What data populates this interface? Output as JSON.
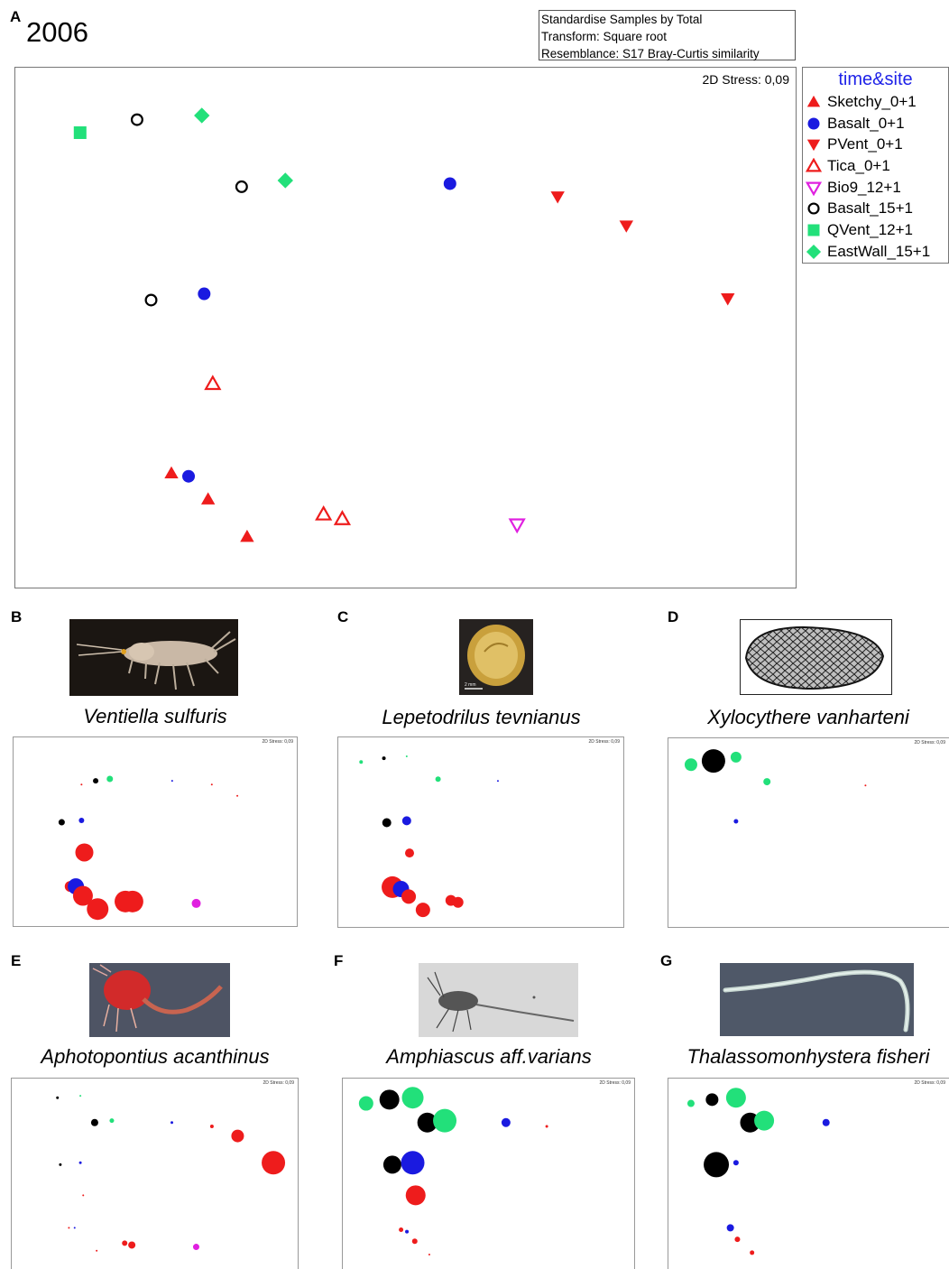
{
  "panel_labels": {
    "A": "A",
    "B": "B",
    "C": "C",
    "D": "D",
    "E": "E",
    "F": "F",
    "G": "G"
  },
  "main": {
    "year": "2006",
    "info_lines": [
      "Standardise Samples by Total",
      "Transform: Square root",
      "Resemblance: S17 Bray-Curtis similarity"
    ],
    "stress": "2D Stress: 0,09"
  },
  "legend": {
    "title": "time&site",
    "items": [
      {
        "label": "Sketchy_0+1",
        "symbol": "triangle-up",
        "color": "#ee1c1c",
        "filled": true
      },
      {
        "label": "Basalt_0+1",
        "symbol": "circle",
        "color": "#1a1ae0",
        "filled": true
      },
      {
        "label": "PVent_0+1",
        "symbol": "triangle-down",
        "color": "#ee1c1c",
        "filled": true
      },
      {
        "label": "Tica_0+1",
        "symbol": "triangle-up",
        "color": "#ee1c1c",
        "filled": false
      },
      {
        "label": "Bio9_12+1",
        "symbol": "triangle-down",
        "color": "#e020e0",
        "filled": false
      },
      {
        "label": "Basalt_15+1",
        "symbol": "circle",
        "color": "#000000",
        "filled": false
      },
      {
        "label": "QVent_12+1",
        "symbol": "square",
        "color": "#22e07a",
        "filled": true
      },
      {
        "label": "EastWall_15+1",
        "symbol": "diamond",
        "color": "#22e07a",
        "filled": true
      }
    ]
  },
  "species_panels": [
    {
      "name": "Ventiella sulfuris",
      "stress": "2D Stress: 0,09",
      "icon": "amphipod-photo"
    },
    {
      "name": "Lepetodrilus tevnianus",
      "stress": "2D Stress: 0,09",
      "icon": "limpet-photo"
    },
    {
      "name": "Xylocythere vanharteni",
      "stress": "2D Stress: 0,09",
      "icon": "ostracod-photo"
    },
    {
      "name": "Aphotopontius acanthinus",
      "stress": "2D Stress: 0,09",
      "icon": "copepod-red-photo"
    },
    {
      "name": "Amphiascus aff.varians",
      "stress": "2D Stress: 0,09",
      "icon": "copepod-photo"
    },
    {
      "name": "Thalassomonhystera fisheri",
      "stress": "2D Stress: 0,09",
      "icon": "nematode-photo"
    }
  ],
  "chart_data": [
    {
      "type": "scatter",
      "title": "2006",
      "subtitle": "2D Stress: 0,09",
      "xlim": [
        0,
        1
      ],
      "ylim": [
        0,
        1
      ],
      "series": [
        {
          "name": "Sketchy_0+1",
          "points": [
            [
              0.2,
              0.22
            ],
            [
              0.247,
              0.17
            ],
            [
              0.297,
              0.098
            ]
          ]
        },
        {
          "name": "Basalt_0+1",
          "points": [
            [
              0.557,
              0.777
            ],
            [
              0.242,
              0.565
            ],
            [
              0.222,
              0.214
            ]
          ]
        },
        {
          "name": "PVent_0+1",
          "points": [
            [
              0.695,
              0.752
            ],
            [
              0.783,
              0.696
            ],
            [
              0.913,
              0.556
            ]
          ]
        },
        {
          "name": "Tica_0+1",
          "points": [
            [
              0.253,
              0.392
            ],
            [
              0.395,
              0.141
            ],
            [
              0.419,
              0.132
            ]
          ]
        },
        {
          "name": "Bio9_12+1",
          "points": [
            [
              0.643,
              0.121
            ]
          ]
        },
        {
          "name": "Basalt_15+1",
          "points": [
            [
              0.156,
              0.9
            ],
            [
              0.29,
              0.771
            ],
            [
              0.174,
              0.553
            ]
          ]
        },
        {
          "name": "QVent_12+1",
          "points": [
            [
              0.083,
              0.875
            ]
          ]
        },
        {
          "name": "EastWall_15+1",
          "points": [
            [
              0.239,
              0.908
            ],
            [
              0.346,
              0.783
            ]
          ]
        }
      ]
    },
    {
      "type": "bubble",
      "title": "Ventiella sulfuris",
      "points": [
        {
          "x": 0.24,
          "y": 0.75,
          "size": 1,
          "color": "#ee1c1c"
        },
        {
          "x": 0.56,
          "y": 0.77,
          "size": 1,
          "color": "#1a1ae0"
        },
        {
          "x": 0.7,
          "y": 0.75,
          "size": 1,
          "color": "#ee1c1c"
        },
        {
          "x": 0.79,
          "y": 0.69,
          "size": 1,
          "color": "#ee1c1c"
        },
        {
          "x": 0.29,
          "y": 0.77,
          "size": 3,
          "color": "#000000"
        },
        {
          "x": 0.34,
          "y": 0.78,
          "size": 3.5,
          "color": "#22e07a"
        },
        {
          "x": 0.17,
          "y": 0.55,
          "size": 3.5,
          "color": "#000000"
        },
        {
          "x": 0.24,
          "y": 0.56,
          "size": 3,
          "color": "#1a1ae0"
        },
        {
          "x": 0.25,
          "y": 0.39,
          "size": 10,
          "color": "#ee1c1c"
        },
        {
          "x": 0.2,
          "y": 0.21,
          "size": 6,
          "color": "#ee1c1c"
        },
        {
          "x": 0.22,
          "y": 0.21,
          "size": 9,
          "color": "#1a1ae0"
        },
        {
          "x": 0.245,
          "y": 0.16,
          "size": 11,
          "color": "#ee1c1c"
        },
        {
          "x": 0.297,
          "y": 0.09,
          "size": 12,
          "color": "#ee1c1c"
        },
        {
          "x": 0.395,
          "y": 0.13,
          "size": 12,
          "color": "#ee1c1c"
        },
        {
          "x": 0.42,
          "y": 0.13,
          "size": 12,
          "color": "#ee1c1c"
        },
        {
          "x": 0.645,
          "y": 0.12,
          "size": 5,
          "color": "#e020e0"
        }
      ]
    },
    {
      "type": "bubble",
      "title": "Lepetodrilus tevnianus",
      "points": [
        {
          "x": 0.08,
          "y": 0.87,
          "size": 2,
          "color": "#22e07a"
        },
        {
          "x": 0.16,
          "y": 0.89,
          "size": 2,
          "color": "#000000"
        },
        {
          "x": 0.24,
          "y": 0.9,
          "size": 1,
          "color": "#22e07a"
        },
        {
          "x": 0.35,
          "y": 0.78,
          "size": 3,
          "color": "#22e07a"
        },
        {
          "x": 0.56,
          "y": 0.77,
          "size": 1,
          "color": "#1a1ae0"
        },
        {
          "x": 0.17,
          "y": 0.55,
          "size": 5,
          "color": "#000000"
        },
        {
          "x": 0.24,
          "y": 0.56,
          "size": 5,
          "color": "#1a1ae0"
        },
        {
          "x": 0.25,
          "y": 0.39,
          "size": 5,
          "color": "#ee1c1c"
        },
        {
          "x": 0.19,
          "y": 0.21,
          "size": 12,
          "color": "#ee1c1c"
        },
        {
          "x": 0.22,
          "y": 0.2,
          "size": 9,
          "color": "#1a1ae0"
        },
        {
          "x": 0.247,
          "y": 0.16,
          "size": 8,
          "color": "#ee1c1c"
        },
        {
          "x": 0.297,
          "y": 0.09,
          "size": 8,
          "color": "#ee1c1c"
        },
        {
          "x": 0.395,
          "y": 0.14,
          "size": 6,
          "color": "#ee1c1c"
        },
        {
          "x": 0.42,
          "y": 0.13,
          "size": 6,
          "color": "#ee1c1c"
        }
      ]
    },
    {
      "type": "bubble",
      "title": "Xylocythere vanharteni",
      "points": [
        {
          "x": 0.08,
          "y": 0.86,
          "size": 7,
          "color": "#22e07a"
        },
        {
          "x": 0.16,
          "y": 0.88,
          "size": 13,
          "color": "#000000"
        },
        {
          "x": 0.24,
          "y": 0.9,
          "size": 6,
          "color": "#22e07a"
        },
        {
          "x": 0.35,
          "y": 0.77,
          "size": 4,
          "color": "#22e07a"
        },
        {
          "x": 0.7,
          "y": 0.75,
          "size": 1,
          "color": "#ee1c1c"
        },
        {
          "x": 0.24,
          "y": 0.56,
          "size": 2.5,
          "color": "#1a1ae0"
        }
      ]
    },
    {
      "type": "bubble",
      "title": "Aphotopontius acanthinus",
      "points": [
        {
          "x": 0.16,
          "y": 0.9,
          "size": 1.5,
          "color": "#000000"
        },
        {
          "x": 0.24,
          "y": 0.91,
          "size": 1,
          "color": "#22e07a"
        },
        {
          "x": 0.29,
          "y": 0.77,
          "size": 4,
          "color": "#000000"
        },
        {
          "x": 0.35,
          "y": 0.78,
          "size": 2.5,
          "color": "#22e07a"
        },
        {
          "x": 0.56,
          "y": 0.77,
          "size": 1.5,
          "color": "#1a1ae0"
        },
        {
          "x": 0.7,
          "y": 0.75,
          "size": 2,
          "color": "#ee1c1c"
        },
        {
          "x": 0.79,
          "y": 0.7,
          "size": 7,
          "color": "#ee1c1c"
        },
        {
          "x": 0.915,
          "y": 0.56,
          "size": 13,
          "color": "#ee1c1c"
        },
        {
          "x": 0.17,
          "y": 0.55,
          "size": 1.5,
          "color": "#000000"
        },
        {
          "x": 0.24,
          "y": 0.56,
          "size": 1.5,
          "color": "#1a1ae0"
        },
        {
          "x": 0.25,
          "y": 0.39,
          "size": 1,
          "color": "#ee1c1c"
        },
        {
          "x": 0.2,
          "y": 0.22,
          "size": 1,
          "color": "#ee1c1c"
        },
        {
          "x": 0.22,
          "y": 0.22,
          "size": 1,
          "color": "#1a1ae0"
        },
        {
          "x": 0.297,
          "y": 0.1,
          "size": 1,
          "color": "#ee1c1c"
        },
        {
          "x": 0.395,
          "y": 0.14,
          "size": 3,
          "color": "#ee1c1c"
        },
        {
          "x": 0.42,
          "y": 0.13,
          "size": 4,
          "color": "#ee1c1c"
        },
        {
          "x": 0.645,
          "y": 0.12,
          "size": 3.5,
          "color": "#e020e0"
        }
      ]
    },
    {
      "type": "bubble",
      "title": "Amphiascus aff.varians",
      "points": [
        {
          "x": 0.08,
          "y": 0.87,
          "size": 8,
          "color": "#22e07a"
        },
        {
          "x": 0.16,
          "y": 0.89,
          "size": 11,
          "color": "#000000"
        },
        {
          "x": 0.24,
          "y": 0.9,
          "size": 12,
          "color": "#22e07a"
        },
        {
          "x": 0.29,
          "y": 0.77,
          "size": 11,
          "color": "#000000"
        },
        {
          "x": 0.35,
          "y": 0.78,
          "size": 13,
          "color": "#22e07a"
        },
        {
          "x": 0.56,
          "y": 0.77,
          "size": 5,
          "color": "#1a1ae0"
        },
        {
          "x": 0.7,
          "y": 0.75,
          "size": 1.5,
          "color": "#ee1c1c"
        },
        {
          "x": 0.17,
          "y": 0.55,
          "size": 10,
          "color": "#000000"
        },
        {
          "x": 0.24,
          "y": 0.56,
          "size": 13,
          "color": "#1a1ae0"
        },
        {
          "x": 0.25,
          "y": 0.39,
          "size": 11,
          "color": "#ee1c1c"
        },
        {
          "x": 0.2,
          "y": 0.21,
          "size": 2.5,
          "color": "#ee1c1c"
        },
        {
          "x": 0.22,
          "y": 0.2,
          "size": 2,
          "color": "#1a1ae0"
        },
        {
          "x": 0.247,
          "y": 0.15,
          "size": 3,
          "color": "#ee1c1c"
        },
        {
          "x": 0.297,
          "y": 0.08,
          "size": 1,
          "color": "#ee1c1c"
        }
      ]
    },
    {
      "type": "bubble",
      "title": "Thalassomonhystera fisheri",
      "points": [
        {
          "x": 0.08,
          "y": 0.87,
          "size": 4,
          "color": "#22e07a"
        },
        {
          "x": 0.155,
          "y": 0.89,
          "size": 7,
          "color": "#000000"
        },
        {
          "x": 0.24,
          "y": 0.9,
          "size": 11,
          "color": "#22e07a"
        },
        {
          "x": 0.29,
          "y": 0.77,
          "size": 11,
          "color": "#000000"
        },
        {
          "x": 0.34,
          "y": 0.78,
          "size": 11,
          "color": "#22e07a"
        },
        {
          "x": 0.56,
          "y": 0.77,
          "size": 4,
          "color": "#1a1ae0"
        },
        {
          "x": 0.17,
          "y": 0.55,
          "size": 14,
          "color": "#000000"
        },
        {
          "x": 0.24,
          "y": 0.56,
          "size": 3,
          "color": "#1a1ae0"
        },
        {
          "x": 0.22,
          "y": 0.22,
          "size": 4,
          "color": "#1a1ae0"
        },
        {
          "x": 0.245,
          "y": 0.16,
          "size": 3,
          "color": "#ee1c1c"
        },
        {
          "x": 0.297,
          "y": 0.09,
          "size": 2.5,
          "color": "#ee1c1c"
        }
      ]
    }
  ]
}
